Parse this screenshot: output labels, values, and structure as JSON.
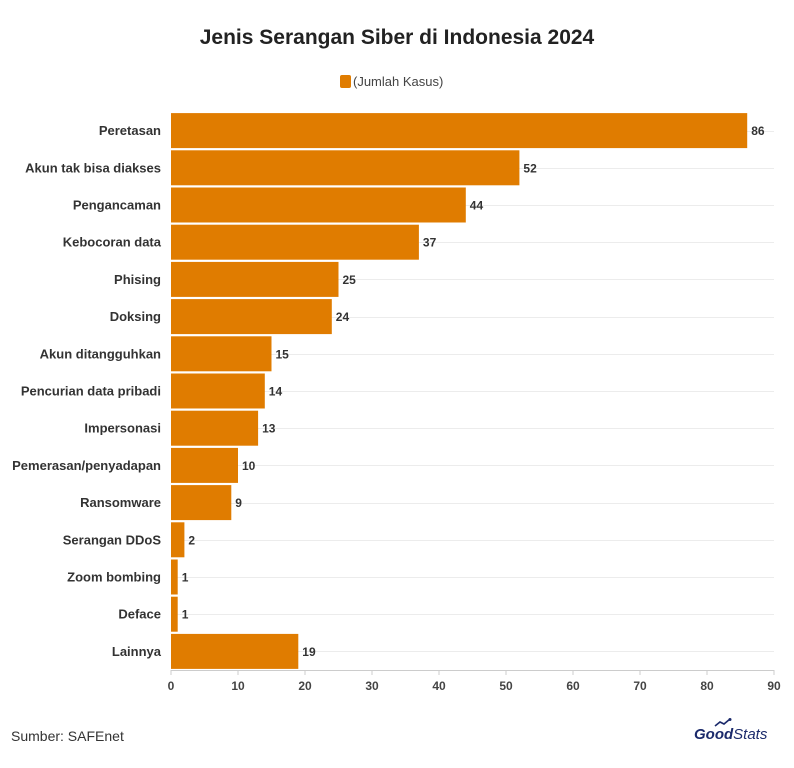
{
  "chart_data": {
    "type": "bar",
    "orientation": "horizontal",
    "title": "Jenis Serangan Siber di Indonesia 2024",
    "categories": [
      "Peretasan",
      "Akun tak bisa diakses",
      "Pengancaman",
      "Kebocoran data",
      "Phising",
      "Doksing",
      "Akun ditangguhkan",
      "Pencurian data pribadi",
      "Impersonasi",
      "Pemerasan/penyadapan",
      "Ransomware",
      "Serangan DDoS",
      "Zoom bombing",
      "Deface",
      "Lainnya"
    ],
    "series": [
      {
        "name": "(Jumlah Kasus)",
        "values": [
          86,
          52,
          44,
          37,
          25,
          24,
          15,
          14,
          13,
          10,
          9,
          2,
          1,
          1,
          19
        ],
        "color": "#e07c00"
      }
    ],
    "xlim": [
      0,
      90
    ],
    "xticks": [
      0,
      10,
      20,
      30,
      40,
      50,
      60,
      70,
      80,
      90
    ],
    "grid": true,
    "data_labels": true,
    "legend_position": "top"
  },
  "footer": {
    "source": "Sumber: SAFEnet",
    "logo_bold": "Good",
    "logo_light": "Stats"
  }
}
